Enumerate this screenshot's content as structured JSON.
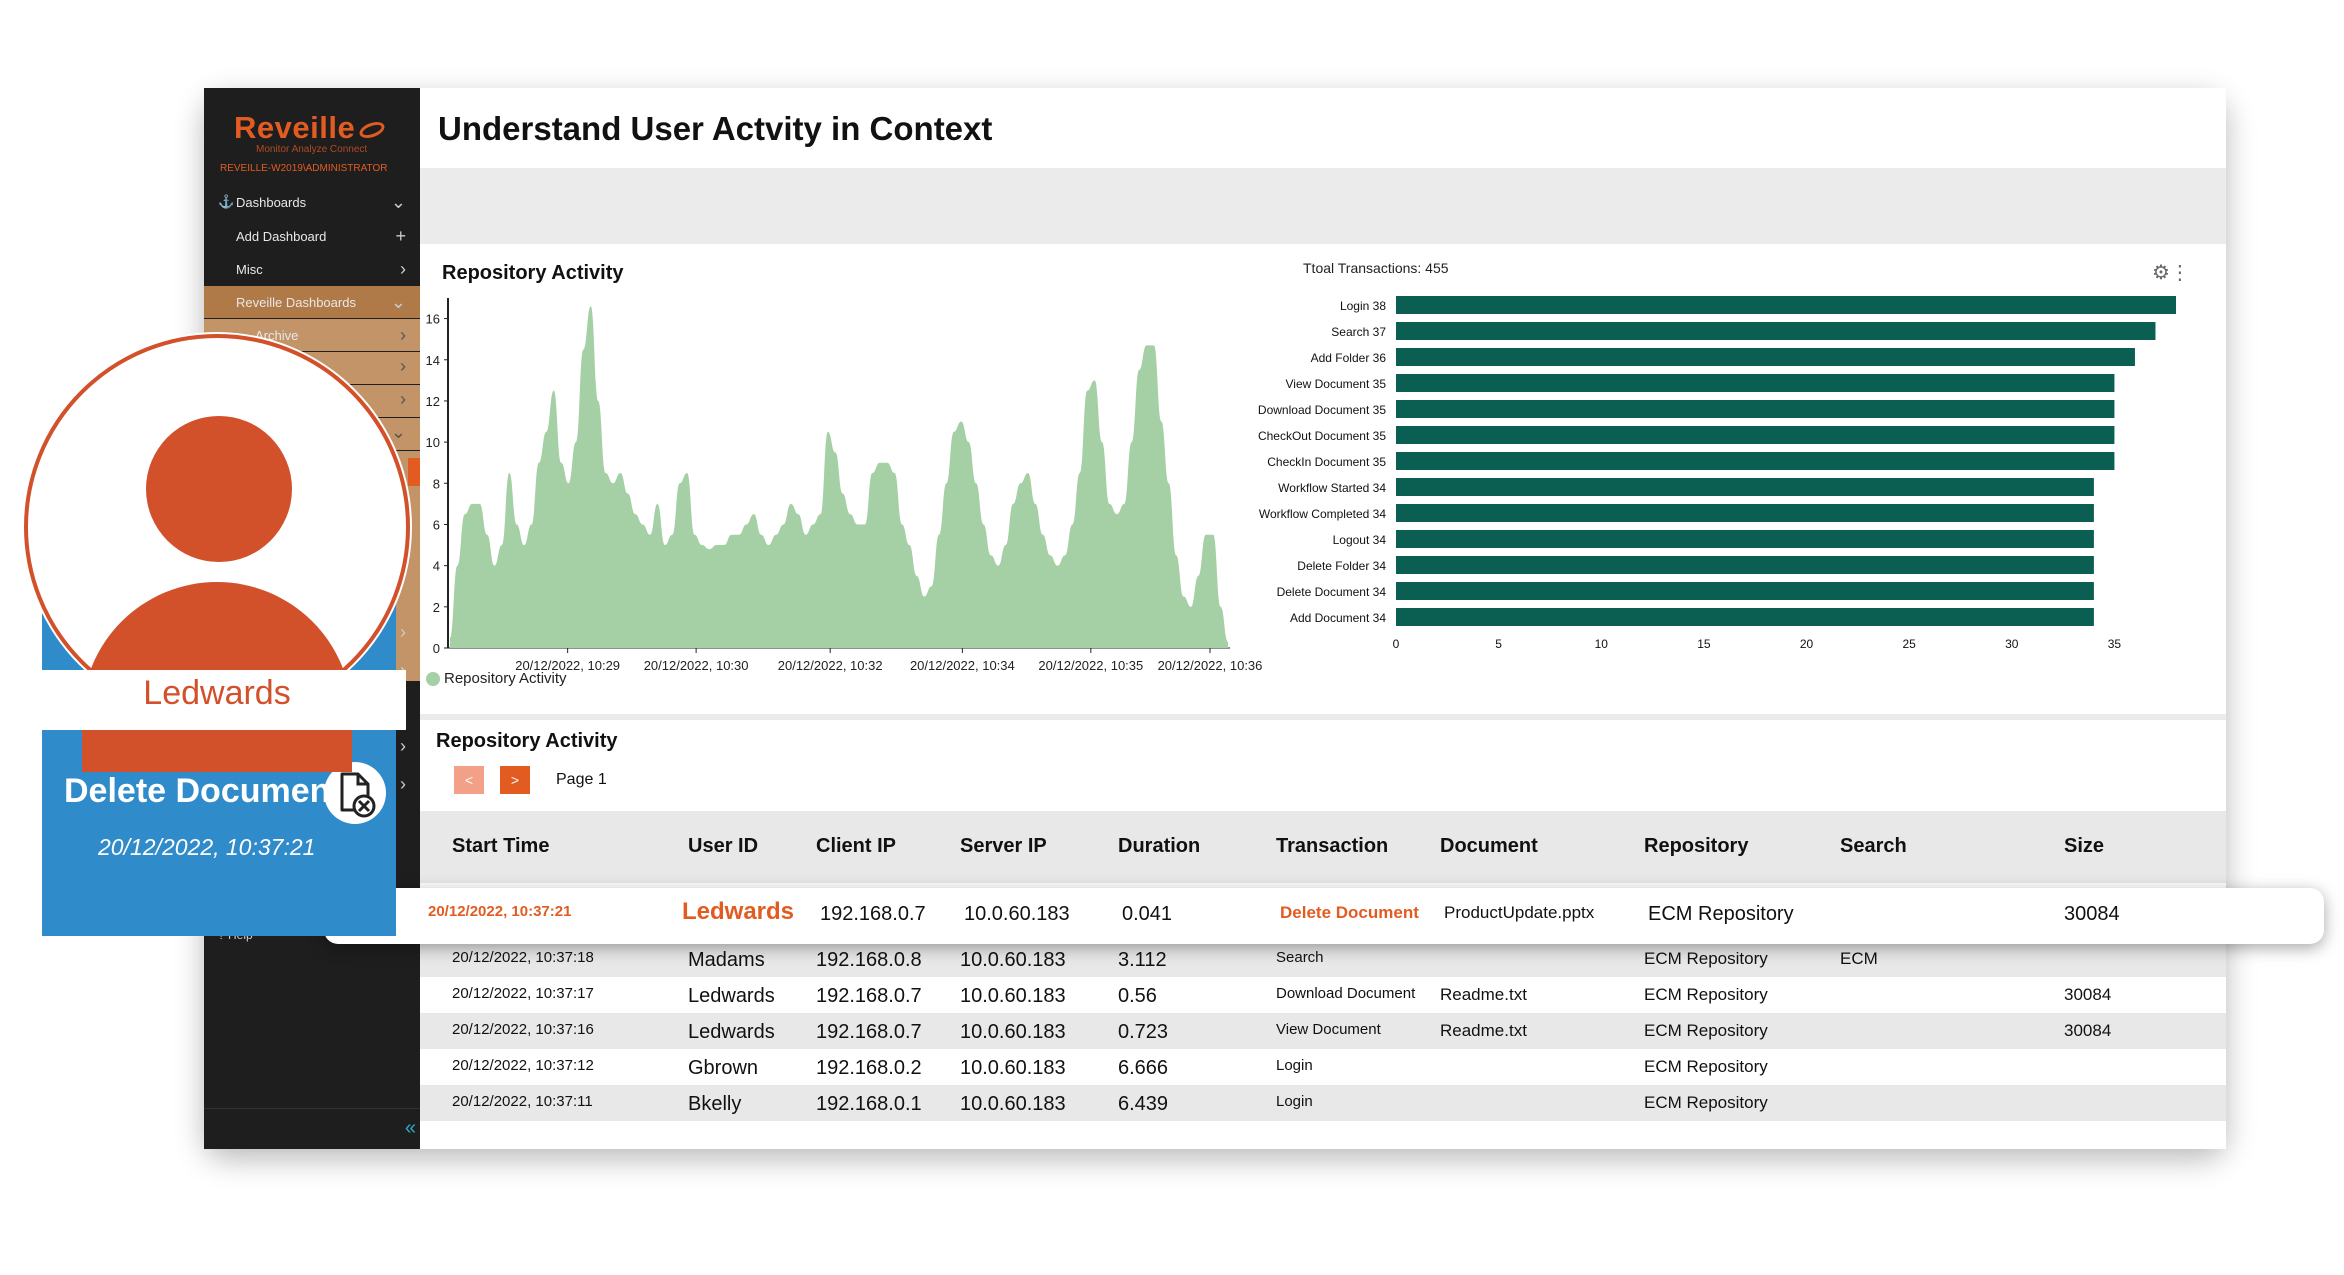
{
  "brand": {
    "name": "Reveille",
    "tagline": "Monitor Analyze Connect",
    "user": "REVEILLE-W2019\\ADMINISTRATOR"
  },
  "sidebar": {
    "items": [
      {
        "label": "Dashboards"
      },
      {
        "label": "Add Dashboard"
      },
      {
        "label": "Misc"
      },
      {
        "label": "Reveille Dashboards"
      },
      {
        "label": "Archive"
      }
    ],
    "help": "Help"
  },
  "page": {
    "title": "Understand User Actvity in Context"
  },
  "area_chart": {
    "panel_title": "Repository Activity",
    "legend": "Repository Activity",
    "chart_data": {
      "type": "area",
      "title": "Repository Activity",
      "y_ticks": [
        "0",
        "2",
        "4",
        "6",
        "8",
        "10",
        "12",
        "14",
        "16"
      ],
      "ylim": [
        0,
        17
      ],
      "x_ticks": [
        "20/12/2022, 10:29",
        "20/12/2022, 10:30",
        "20/12/2022, 10:32",
        "20/12/2022, 10:34",
        "20/12/2022, 10:35",
        "20/12/2022, 10:36"
      ],
      "series": [
        {
          "name": "Repository Activity",
          "color": "#a5cfa4",
          "values": [
            0.5,
            4,
            6.5,
            7,
            7,
            5.5,
            4,
            5,
            8.5,
            6,
            5,
            6,
            9,
            10.5,
            12.5,
            9,
            8,
            10,
            14.5,
            16.6,
            12,
            8.5,
            8,
            8.5,
            7.5,
            6.5,
            6,
            5.5,
            7,
            5,
            5.5,
            8,
            8.5,
            5.5,
            5,
            4.8,
            5,
            5,
            5.5,
            5.5,
            6,
            6.5,
            5.5,
            5,
            5.5,
            6,
            7,
            6.5,
            5.5,
            6,
            6.5,
            10.5,
            9.5,
            7.5,
            6.5,
            6,
            6,
            8.5,
            9,
            9,
            8.5,
            6,
            5,
            3.5,
            2.5,
            3,
            5.5,
            8,
            10.5,
            11,
            10,
            8,
            6,
            4.5,
            4,
            5,
            7,
            8,
            8.5,
            7,
            5.5,
            4.5,
            4,
            4.5,
            6,
            8.5,
            12.5,
            13,
            10,
            7,
            6.5,
            7,
            10,
            13.5,
            14.7,
            14.7,
            11,
            8,
            4.5,
            2.5,
            2,
            3.5,
            5.5,
            5.5,
            2,
            0.3
          ]
        }
      ]
    }
  },
  "bar_chart": {
    "total_label": "Ttoal Transactions: 455",
    "chart_data": {
      "type": "bar",
      "orientation": "horizontal",
      "categories": [
        "Login 38",
        "Search 37",
        "Add Folder 36",
        "View Document 35",
        "Download Document 35",
        "CheckOut Document 35",
        "CheckIn  Document 35",
        "Workflow Started 34",
        "Workflow Completed 34",
        "Logout 34",
        "Delete Folder 34",
        "Delete Document 34",
        "Add Document 34"
      ],
      "values": [
        38,
        37,
        36,
        35,
        35,
        35,
        35,
        34,
        34,
        34,
        34,
        34,
        34
      ],
      "x_ticks": [
        "0",
        "5",
        "10",
        "15",
        "20",
        "25",
        "30",
        "35"
      ],
      "xlim": [
        0,
        38
      ],
      "color": "#0b5e52"
    }
  },
  "table": {
    "panel_title": "Repository Activity",
    "pager": {
      "prev": "<",
      "next": ">",
      "label": "Page 1"
    },
    "headers": [
      "Start Time",
      "User ID",
      "Client IP",
      "Server IP",
      "Duration",
      "Transaction",
      "Document",
      "Repository",
      "Search",
      "Size"
    ],
    "highlight": {
      "start": "20/12/2022, 10:37:21",
      "user": "Ledwards",
      "client": "192.168.0.7",
      "server": "10.0.60.183",
      "duration": "0.041",
      "transaction": "Delete Document",
      "document": "ProductUpdate.pptx",
      "repository": "ECM Repository",
      "search": "",
      "size": "30084"
    },
    "rows": [
      {
        "start": "20/12/2022, 10:37:18",
        "user": "Madams",
        "client": "192.168.0.8",
        "server": "10.0.60.183",
        "duration": "3.112",
        "transaction": "Search",
        "document": "",
        "repository": "ECM Repository",
        "search": "ECM",
        "size": ""
      },
      {
        "start": "20/12/2022, 10:37:17",
        "user": "Ledwards",
        "client": "192.168.0.7",
        "server": "10.0.60.183",
        "duration": "0.56",
        "transaction": "Download Document",
        "document": "Readme.txt",
        "repository": "ECM Repository",
        "search": "",
        "size": "30084"
      },
      {
        "start": "20/12/2022, 10:37:16",
        "user": "Ledwards",
        "client": "192.168.0.7",
        "server": "10.0.60.183",
        "duration": "0.723",
        "transaction": "View Document",
        "document": "Readme.txt",
        "repository": "ECM Repository",
        "search": "",
        "size": "30084"
      },
      {
        "start": "20/12/2022, 10:37:12",
        "user": "Gbrown",
        "client": "192.168.0.2",
        "server": "10.0.60.183",
        "duration": "6.666",
        "transaction": "Login",
        "document": "",
        "repository": "ECM Repository",
        "search": "",
        "size": ""
      },
      {
        "start": "20/12/2022, 10:37:11",
        "user": "Bkelly",
        "client": "192.168.0.1",
        "server": "10.0.60.183",
        "duration": "6.439",
        "transaction": "Login",
        "document": "",
        "repository": "ECM Repository",
        "search": "",
        "size": ""
      }
    ]
  },
  "user_card": {
    "name": "Ledwards",
    "action": "Delete Document",
    "time": "20/12/2022, 10:37:21",
    "icon": "delete-document-icon"
  },
  "colors": {
    "accent": "#e25c22",
    "area": "#a5cfa4",
    "bar": "#0b5e52",
    "card": "#2f8bc9"
  }
}
